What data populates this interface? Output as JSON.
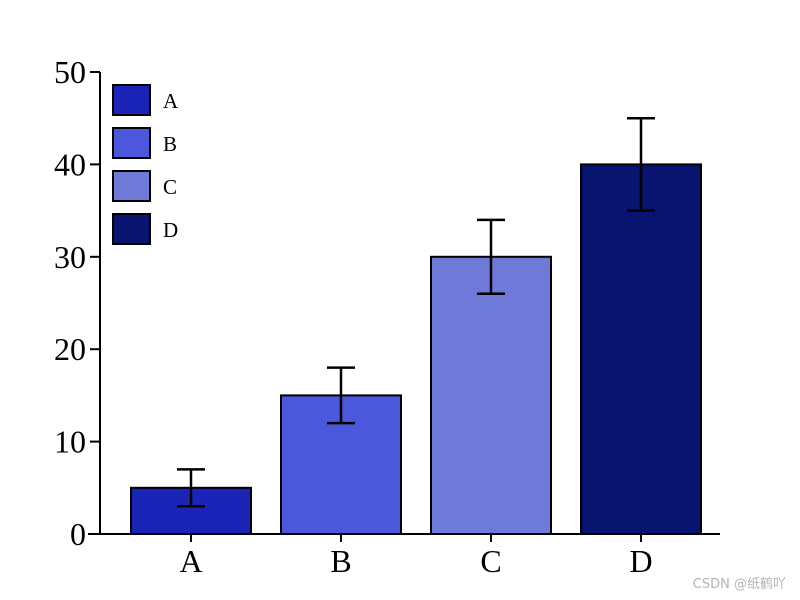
{
  "chart_data": {
    "type": "bar",
    "categories": [
      "A",
      "B",
      "C",
      "D"
    ],
    "values": [
      5,
      15,
      30,
      40
    ],
    "errors": [
      2,
      3,
      4,
      5
    ],
    "colors": [
      "#1a25b8",
      "#4b58db",
      "#6f79d8",
      "#081470"
    ],
    "ylim": [
      0,
      50
    ],
    "yticks": [
      0,
      10,
      20,
      30,
      40,
      50
    ],
    "legend": {
      "position": "top-left",
      "entries": [
        "A",
        "B",
        "C",
        "D"
      ]
    },
    "grid": false,
    "title": "",
    "xlabel": "",
    "ylabel": ""
  },
  "watermark": "CSDN @纸鹤吖"
}
